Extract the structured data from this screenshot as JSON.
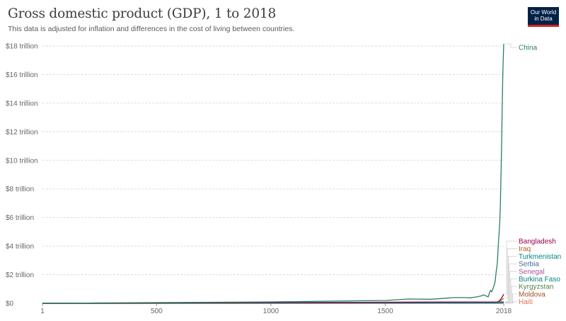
{
  "header": {
    "title": "Gross domestic product (GDP), 1 to 2018",
    "subtitle": "This data is adjusted for inflation and differences in the cost of living between countries.",
    "logo_line1": "Our World",
    "logo_line2": "in Data"
  },
  "chart_data": {
    "type": "line",
    "xlim": [
      1,
      2018
    ],
    "ylim": [
      0,
      18000000000000
    ],
    "x_ticks": [
      1,
      500,
      1000,
      1500,
      2018
    ],
    "x_tick_labels": [
      "1",
      "500",
      "1000",
      "1500",
      "2018"
    ],
    "y_ticks": [
      0,
      2000000000000,
      4000000000000,
      6000000000000,
      8000000000000,
      10000000000000,
      12000000000000,
      14000000000000,
      16000000000000,
      18000000000000
    ],
    "y_tick_labels": [
      "$0",
      "$2 trillion",
      "$4 trillion",
      "$6 trillion",
      "$8 trillion",
      "$10 trillion",
      "$12 trillion",
      "$14 trillion",
      "$16 trillion",
      "$18 trillion"
    ],
    "grid": "horizontal dashed",
    "legend": "right, direct labels",
    "series": [
      {
        "name": "China",
        "color": "#2a7f62",
        "x": [
          1,
          1000,
          1500,
          1600,
          1700,
          1800,
          1850,
          1870,
          1900,
          1920,
          1930,
          1940,
          1950,
          1955,
          1960,
          1965,
          1970,
          1975,
          1980,
          1985,
          1990,
          1995,
          2000,
          2003,
          2006,
          2008,
          2010,
          2012,
          2014,
          2016,
          2018
        ],
        "y": [
          0,
          100000000000,
          200000000000,
          300000000000,
          280000000000,
          400000000000,
          400000000000,
          380000000000,
          450000000000,
          520000000000,
          600000000000,
          520000000000,
          450000000000,
          700000000000,
          900000000000,
          800000000000,
          1000000000000,
          1200000000000,
          1500000000000,
          2200000000000,
          2800000000000,
          4300000000000,
          5500000000000,
          6800000000000,
          8900000000000,
          10600000000000,
          12400000000000,
          14500000000000,
          16000000000000,
          17300000000000,
          18150000000000
        ]
      },
      {
        "name": "Bangladesh",
        "color": "#970046",
        "x": [
          1,
          1990,
          2000,
          2010,
          2018
        ],
        "y": [
          0,
          100000000000,
          200000000000,
          400000000000,
          650000000000
        ]
      },
      {
        "name": "Iraq",
        "color": "#c05917",
        "x": [
          1,
          1990,
          2000,
          2010,
          2018
        ],
        "y": [
          0,
          100000000000,
          120000000000,
          250000000000,
          350000000000
        ]
      },
      {
        "name": "Turkmenistan",
        "color": "#00847e",
        "x": [
          1,
          1990,
          2018
        ],
        "y": [
          0,
          20000000000,
          90000000000
        ]
      },
      {
        "name": "Serbia",
        "color": "#4c6a9c",
        "x": [
          1,
          1990,
          2018
        ],
        "y": [
          0,
          80000000000,
          110000000000
        ]
      },
      {
        "name": "Senegal",
        "color": "#a2559c",
        "x": [
          1,
          1990,
          2018
        ],
        "y": [
          0,
          20000000000,
          50000000000
        ]
      },
      {
        "name": "Burkina Faso",
        "color": "#00847e",
        "x": [
          1,
          1990,
          2018
        ],
        "y": [
          0,
          10000000000,
          35000000000
        ]
      },
      {
        "name": "Kyrgyzstan",
        "color": "#578145",
        "x": [
          1,
          1990,
          2018
        ],
        "y": [
          0,
          15000000000,
          20000000000
        ]
      },
      {
        "name": "Moldova",
        "color": "#9a5129",
        "x": [
          1,
          1990,
          2018
        ],
        "y": [
          0,
          15000000000,
          18000000000
        ]
      },
      {
        "name": "Haiti",
        "color": "#e56e5a",
        "x": [
          1,
          1000,
          1500,
          1990,
          2018
        ],
        "y": [
          0,
          0,
          0,
          10000000000,
          17000000000
        ]
      }
    ]
  }
}
